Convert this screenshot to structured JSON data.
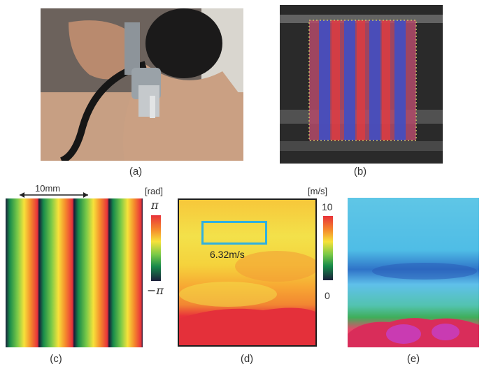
{
  "captions": {
    "a": "(a)",
    "b": "(b)",
    "c": "(c)",
    "d": "(d)",
    "e": "(e)"
  },
  "panel_c": {
    "scale_bar_label": "10mm",
    "unit_label": "[rad]",
    "colorbar_top": "π",
    "colorbar_bottom": "−π"
  },
  "panel_d": {
    "unit_label": "[m/s]",
    "colorbar_top": "10",
    "colorbar_bottom": "0",
    "roi_value": "6.32m/s"
  }
}
